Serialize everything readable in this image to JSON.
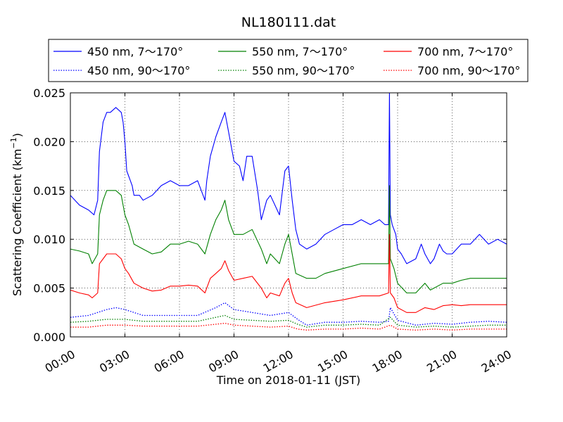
{
  "chart_data": {
    "type": "line",
    "title": "NL180111.dat",
    "xlabel": "Time on 2018-01-11 (JST)",
    "ylabel_main": "Scattering Coefficient (km",
    "ylabel_sup": "−1",
    "ylabel_close": ")",
    "xlim": [
      0,
      24
    ],
    "ylim": [
      0,
      0.025
    ],
    "x_ticks": [
      0,
      3,
      6,
      9,
      12,
      15,
      18,
      21,
      24
    ],
    "x_tick_labels": [
      "00:00",
      "03:00",
      "06:00",
      "09:00",
      "12:00",
      "15:00",
      "18:00",
      "21:00",
      "24:00"
    ],
    "y_ticks": [
      0,
      0.005,
      0.01,
      0.015,
      0.02,
      0.025
    ],
    "y_tick_labels": [
      "0.000",
      "0.005",
      "0.010",
      "0.015",
      "0.020",
      "0.025"
    ],
    "grid": true,
    "legend_position": "top (above plot)",
    "legend_ncol": 3,
    "series": [
      {
        "name": "450 nm, 7～170°",
        "color": "#0000ff",
        "style": "solid",
        "x": [
          0,
          0.5,
          1,
          1.3,
          1.5,
          1.6,
          1.8,
          2,
          2.2,
          2.5,
          2.8,
          2.9,
          3,
          3.1,
          3.2,
          3.4,
          3.5,
          3.8,
          4,
          4.5,
          5,
          5.5,
          6,
          6.5,
          7,
          7.4,
          7.5,
          7.7,
          8,
          8.3,
          8.5,
          8.7,
          9,
          9.3,
          9.5,
          9.7,
          10,
          10.3,
          10.5,
          10.8,
          11,
          11.5,
          11.8,
          12,
          12.2,
          12.4,
          12.6,
          13,
          13.5,
          14,
          14.5,
          15,
          15.5,
          16,
          16.5,
          17,
          17.3,
          17.5,
          17.55,
          17.6,
          17.7,
          17.9,
          18,
          18.2,
          18.5,
          19,
          19.3,
          19.5,
          19.8,
          20,
          20.3,
          20.5,
          20.7,
          21,
          21.5,
          22,
          22.5,
          23,
          23.5,
          24
        ],
        "y": [
          0.0145,
          0.0135,
          0.013,
          0.0125,
          0.014,
          0.019,
          0.022,
          0.023,
          0.023,
          0.0235,
          0.023,
          0.022,
          0.02,
          0.017,
          0.0165,
          0.0155,
          0.0145,
          0.0145,
          0.014,
          0.0145,
          0.0155,
          0.016,
          0.0155,
          0.0155,
          0.016,
          0.014,
          0.016,
          0.0185,
          0.0205,
          0.022,
          0.023,
          0.021,
          0.018,
          0.0175,
          0.016,
          0.0185,
          0.0185,
          0.015,
          0.012,
          0.014,
          0.0145,
          0.0125,
          0.017,
          0.0175,
          0.014,
          0.011,
          0.0095,
          0.009,
          0.0095,
          0.0105,
          0.011,
          0.0115,
          0.0115,
          0.012,
          0.0115,
          0.012,
          0.0115,
          0.0115,
          0.025,
          0.0125,
          0.0115,
          0.0105,
          0.009,
          0.0085,
          0.0075,
          0.008,
          0.0095,
          0.0085,
          0.0075,
          0.008,
          0.0095,
          0.0088,
          0.0085,
          0.0085,
          0.0095,
          0.0095,
          0.0105,
          0.0095,
          0.01,
          0.0095
        ]
      },
      {
        "name": "450 nm, 90～170°",
        "color": "#0000ff",
        "style": "dotted",
        "x": [
          0,
          1,
          2,
          2.5,
          3,
          4,
          5,
          6,
          7,
          8,
          8.5,
          9,
          10,
          11,
          12,
          12.5,
          13,
          14,
          15,
          16,
          17,
          17.5,
          17.6,
          18,
          19,
          20,
          21,
          22,
          23,
          24
        ],
        "y": [
          0.002,
          0.0022,
          0.0028,
          0.003,
          0.0028,
          0.0022,
          0.0022,
          0.0022,
          0.0022,
          0.003,
          0.0035,
          0.0028,
          0.0025,
          0.0022,
          0.0025,
          0.0018,
          0.0012,
          0.0015,
          0.0015,
          0.0016,
          0.0015,
          0.0016,
          0.003,
          0.0017,
          0.0012,
          0.0014,
          0.0013,
          0.0015,
          0.0016,
          0.0015
        ]
      },
      {
        "name": "550 nm, 7～170°",
        "color": "#008000",
        "style": "solid",
        "x": [
          0,
          0.5,
          1,
          1.2,
          1.5,
          1.6,
          1.8,
          2,
          2.5,
          2.8,
          3,
          3.2,
          3.5,
          4,
          4.5,
          5,
          5.5,
          6,
          6.5,
          7,
          7.4,
          7.7,
          8,
          8.3,
          8.5,
          8.7,
          9,
          9.5,
          10,
          10.5,
          10.8,
          11,
          11.5,
          11.8,
          12,
          12.2,
          12.4,
          13,
          13.5,
          14,
          15,
          16,
          17,
          17.5,
          17.55,
          17.6,
          17.8,
          18,
          18.5,
          19,
          19.5,
          19.8,
          20,
          20.5,
          21,
          21.5,
          22,
          23,
          24
        ],
        "y": [
          0.009,
          0.0088,
          0.0085,
          0.0075,
          0.0085,
          0.0125,
          0.014,
          0.015,
          0.015,
          0.0145,
          0.0125,
          0.0115,
          0.0095,
          0.009,
          0.0085,
          0.0087,
          0.0095,
          0.0095,
          0.0098,
          0.0095,
          0.0085,
          0.0105,
          0.012,
          0.013,
          0.014,
          0.012,
          0.0105,
          0.0105,
          0.011,
          0.009,
          0.0075,
          0.0085,
          0.0075,
          0.0095,
          0.0105,
          0.0085,
          0.0065,
          0.006,
          0.006,
          0.0065,
          0.007,
          0.0075,
          0.0075,
          0.0075,
          0.0155,
          0.008,
          0.007,
          0.0055,
          0.0045,
          0.0045,
          0.0055,
          0.0048,
          0.005,
          0.0055,
          0.0055,
          0.0058,
          0.006,
          0.006,
          0.006
        ]
      },
      {
        "name": "550 nm, 90～170°",
        "color": "#008000",
        "style": "dotted",
        "x": [
          0,
          1,
          2,
          3,
          4,
          5,
          6,
          7,
          8,
          8.5,
          9,
          10,
          11,
          12,
          12.5,
          13,
          14,
          15,
          16,
          17,
          17.6,
          18,
          19,
          20,
          21,
          22,
          23,
          24
        ],
        "y": [
          0.0015,
          0.0016,
          0.0018,
          0.0018,
          0.0016,
          0.0016,
          0.0016,
          0.0016,
          0.002,
          0.0022,
          0.0018,
          0.0017,
          0.0016,
          0.0017,
          0.0013,
          0.001,
          0.0012,
          0.0012,
          0.0013,
          0.0012,
          0.002,
          0.0012,
          0.001,
          0.0011,
          0.001,
          0.0011,
          0.0012,
          0.0012
        ]
      },
      {
        "name": "700 nm, 7～170°",
        "color": "#ff0000",
        "style": "solid",
        "x": [
          0,
          0.5,
          1,
          1.2,
          1.5,
          1.6,
          1.8,
          2,
          2.5,
          2.8,
          3,
          3.2,
          3.5,
          4,
          4.5,
          5,
          5.5,
          6,
          6.5,
          7,
          7.4,
          7.7,
          8,
          8.3,
          8.5,
          8.7,
          9,
          9.5,
          10,
          10.5,
          10.8,
          11,
          11.5,
          11.8,
          12,
          12.2,
          12.4,
          13,
          14,
          15,
          16,
          17,
          17.5,
          17.55,
          17.6,
          17.8,
          18,
          18.5,
          19,
          19.5,
          20,
          20.5,
          21,
          21.5,
          22,
          23,
          24
        ],
        "y": [
          0.0048,
          0.0045,
          0.0043,
          0.004,
          0.0045,
          0.0075,
          0.008,
          0.0085,
          0.0085,
          0.008,
          0.007,
          0.0065,
          0.0055,
          0.005,
          0.0047,
          0.0048,
          0.0052,
          0.0052,
          0.0053,
          0.0052,
          0.0045,
          0.006,
          0.0065,
          0.007,
          0.0078,
          0.0068,
          0.0058,
          0.006,
          0.0062,
          0.005,
          0.004,
          0.0045,
          0.0042,
          0.0055,
          0.006,
          0.0045,
          0.0035,
          0.003,
          0.0035,
          0.0038,
          0.0042,
          0.0042,
          0.0045,
          0.0105,
          0.0045,
          0.004,
          0.003,
          0.0025,
          0.0025,
          0.003,
          0.0028,
          0.0032,
          0.0033,
          0.0032,
          0.0033,
          0.0033,
          0.0033
        ]
      },
      {
        "name": "700 nm, 90～170°",
        "color": "#ff0000",
        "style": "dotted",
        "x": [
          0,
          1,
          2,
          3,
          4,
          5,
          6,
          7,
          8,
          8.5,
          9,
          10,
          11,
          12,
          12.5,
          13,
          14,
          15,
          16,
          17,
          17.6,
          18,
          19,
          20,
          21,
          22,
          23,
          24
        ],
        "y": [
          0.001,
          0.001,
          0.0012,
          0.0012,
          0.0011,
          0.0011,
          0.0011,
          0.0011,
          0.0013,
          0.0014,
          0.0012,
          0.0011,
          0.001,
          0.0011,
          0.0008,
          0.0007,
          0.0008,
          0.0008,
          0.0009,
          0.0008,
          0.0012,
          0.0008,
          0.0007,
          0.0008,
          0.0007,
          0.0008,
          0.0008,
          0.0008
        ]
      }
    ]
  }
}
